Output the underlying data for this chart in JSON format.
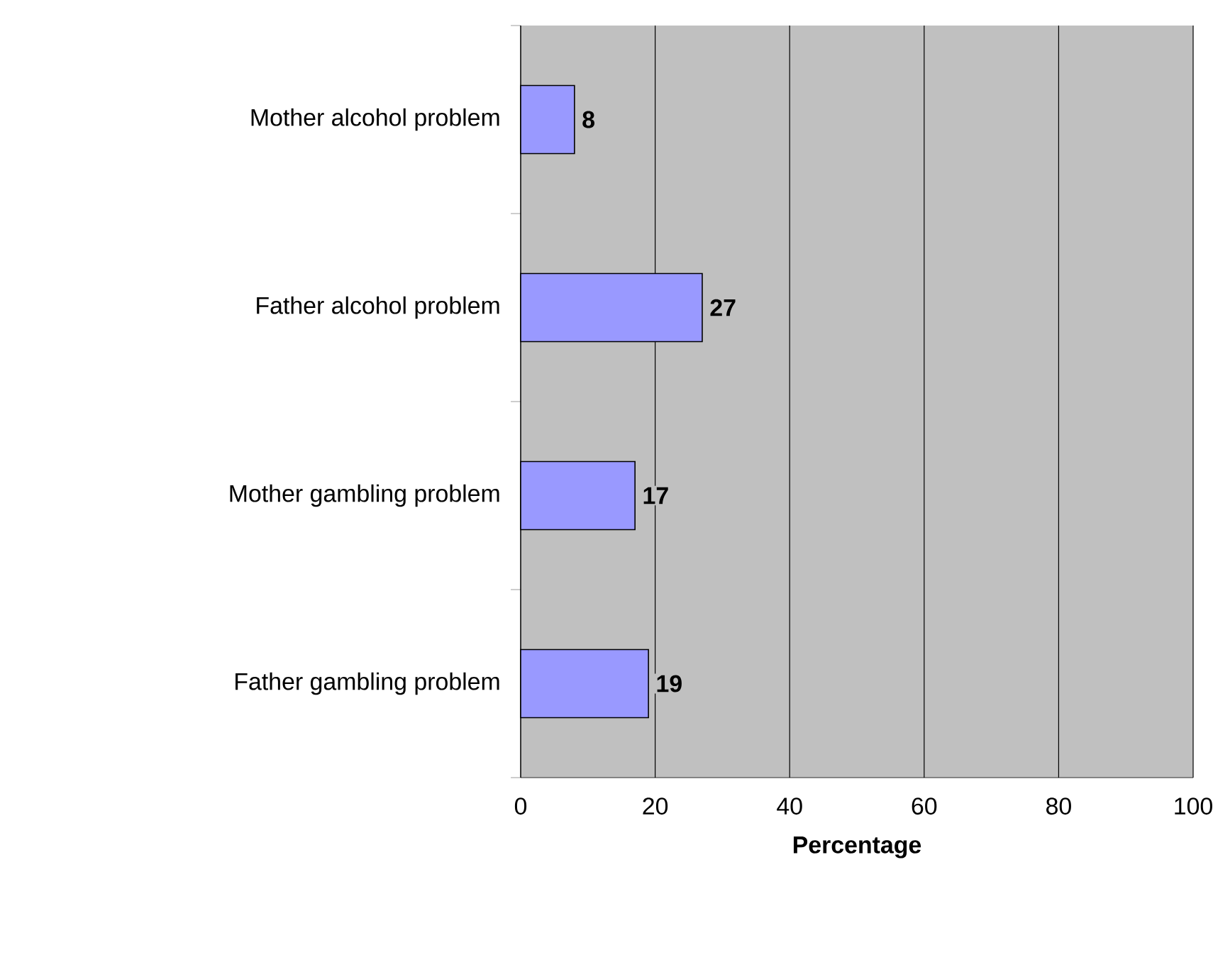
{
  "chart_data": {
    "type": "bar",
    "orientation": "horizontal",
    "xlabel": "Percentage",
    "categories": [
      "Mother alcohol problem",
      "Father alcohol problem",
      "Mother gambling problem",
      "Father gambling problem"
    ],
    "values": [
      8,
      27,
      17,
      19
    ],
    "color": "#9999ff",
    "xlim": [
      0,
      100
    ],
    "xticks": [
      0,
      20,
      40,
      60,
      80,
      100
    ],
    "grid": "x",
    "data_labels": true
  }
}
